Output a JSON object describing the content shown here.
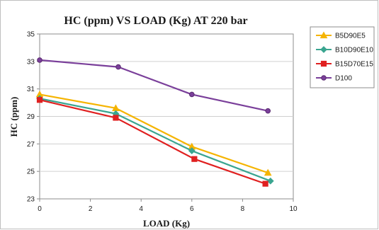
{
  "chart_data": {
    "type": "line",
    "title": "HC (ppm) VS LOAD (Kg) AT 220 bar",
    "xlabel": "LOAD (Kg)",
    "ylabel": "HC (ppm)",
    "xlim": [
      0,
      10
    ],
    "ylim": [
      23,
      35
    ],
    "xticks": [
      "0",
      "2",
      "4",
      "6",
      "8",
      "10"
    ],
    "yticks": [
      "23",
      "25",
      "27",
      "29",
      "31",
      "33",
      "35"
    ],
    "grid": "horizontal",
    "legend_position": "right",
    "series": [
      {
        "name": "B5D90E5",
        "color": "#f5b400",
        "marker": "triangle",
        "x": [
          0,
          3.0,
          6.0,
          9.0
        ],
        "y": [
          30.6,
          29.6,
          26.8,
          24.9
        ]
      },
      {
        "name": "B10D90E10",
        "color": "#3aa590",
        "marker": "diamond",
        "x": [
          0,
          3.0,
          6.0,
          9.1
        ],
        "y": [
          30.3,
          29.2,
          26.5,
          24.3
        ]
      },
      {
        "name": "B15D70E15",
        "color": "#e02020",
        "marker": "square",
        "x": [
          0,
          3.0,
          6.1,
          8.9
        ],
        "y": [
          30.2,
          28.9,
          25.9,
          24.1
        ]
      },
      {
        "name": "D100",
        "color": "#7a3f9a",
        "marker": "circle",
        "x": [
          0,
          3.1,
          6.0,
          9.0
        ],
        "y": [
          33.1,
          32.6,
          30.6,
          29.4
        ]
      }
    ]
  }
}
